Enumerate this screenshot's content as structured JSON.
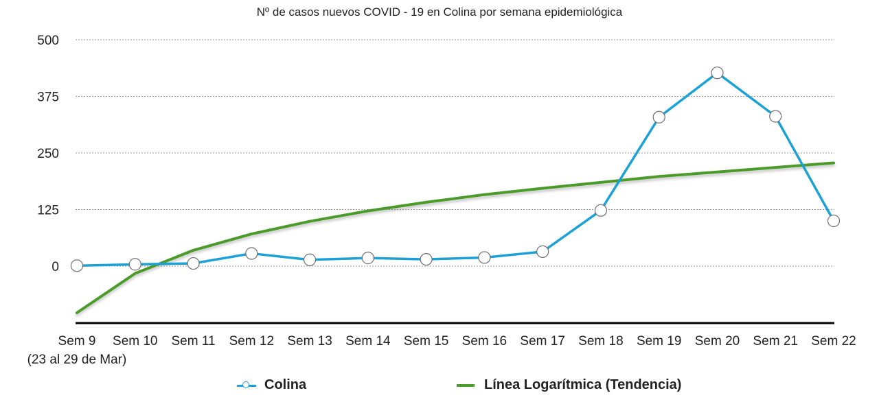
{
  "chart_data": {
    "type": "line",
    "title": "Nº de casos nuevos COVID - 19 en Colina por semana epidemiológica",
    "categories": [
      "Sem 9",
      "Sem 10",
      "Sem 11",
      "Sem 12",
      "Sem 13",
      "Sem 14",
      "Sem 15",
      "Sem 16",
      "Sem 17",
      "Sem 18",
      "Sem 19",
      "Sem 20",
      "Sem 21",
      "Sem 22"
    ],
    "first_category_note": "(23 al 29 de Mar)",
    "y_ticks": [
      "500",
      "375",
      "250",
      "125",
      "0"
    ],
    "ylim": [
      -125,
      500
    ],
    "grid": true,
    "legend_position": "bottom",
    "series": [
      {
        "name": "Colina",
        "color": "#1ba1d6",
        "marker": "circle",
        "values": [
          1,
          4,
          6,
          28,
          14,
          18,
          15,
          19,
          32,
          123,
          329,
          427,
          331,
          100
        ]
      },
      {
        "name": "Línea Logarítmica (Tendencia)",
        "color": "#4c9b2b",
        "marker": "none",
        "values": [
          -103,
          -16,
          35,
          71,
          99,
          122,
          141,
          158,
          172,
          185,
          198,
          208,
          218,
          228
        ]
      }
    ]
  }
}
